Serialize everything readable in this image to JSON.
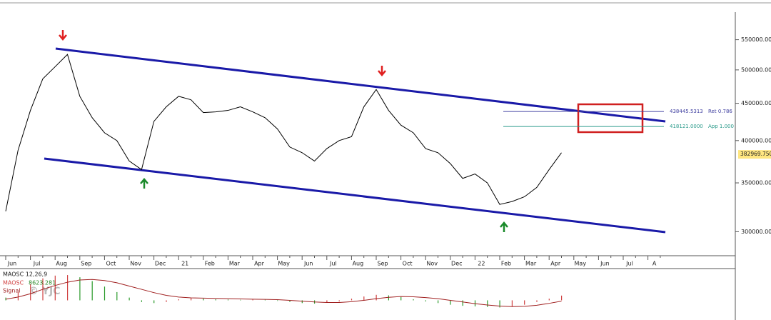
{
  "chart_data": [
    {
      "type": "line",
      "color": "#000000",
      "log_scale": true,
      "categories": [
        "Jun",
        null,
        "Jul",
        null,
        "Aug",
        null,
        "Sep",
        null,
        "Oct",
        null,
        "Nov",
        null,
        "Dec",
        null,
        "21",
        null,
        "Feb",
        null,
        "Mar",
        null,
        "Apr",
        null,
        "May",
        null,
        "Jun",
        null,
        "Jul",
        null,
        "Aug",
        null,
        "Sep",
        null,
        "Oct",
        null,
        "Nov",
        null,
        "Dec",
        null,
        "22",
        null,
        "Feb",
        null,
        "Mar",
        null,
        "Apr",
        null,
        "May",
        null,
        "Jun",
        null,
        "Jul",
        null,
        "A",
        null
      ],
      "values": [
        320000,
        388000,
        440000,
        486000,
        505000,
        525000,
        460000,
        430000,
        410000,
        400000,
        375000,
        365000,
        425000,
        445000,
        460000,
        455000,
        437000,
        438000,
        440000,
        445000,
        438000,
        430000,
        415000,
        392000,
        385000,
        375000,
        390000,
        400000,
        405000,
        445000,
        470000,
        440000,
        420000,
        410000,
        390000,
        385000,
        372000,
        355000,
        360000,
        350000,
        327000,
        330000,
        335000,
        345000,
        365000,
        385000,
        null,
        null,
        null,
        null,
        null,
        null,
        null,
        null
      ],
      "ylim": [
        280000,
        600000
      ],
      "yticks": [
        {
          "value": 300000,
          "label": "300000.00"
        },
        {
          "value": 350000,
          "label": "350000.00"
        },
        {
          "value": 400000,
          "label": "400000.00"
        },
        {
          "value": 450000,
          "label": "450000.00"
        },
        {
          "value": 500000,
          "label": "500000.00"
        },
        {
          "value": 550000,
          "label": "550000.00"
        }
      ],
      "levels": [
        {
          "value": 438445.5313,
          "label": "438445.5313",
          "text": "Ret 0.786",
          "color": "#4040a0"
        },
        {
          "value": 418121,
          "label": "418121.0000",
          "text": "App 1.000",
          "color": "#2a9a8a"
        }
      ],
      "last_price": {
        "value": 382969.75,
        "label": "382969.750"
      }
    },
    {
      "type": "bar",
      "title": "MAOSC 12,26,9",
      "ylim": [
        -15000,
        50000
      ],
      "series": [
        {
          "name": "MAOSC",
          "color": "#d04040",
          "values": [
            5000,
            15000,
            30000,
            40000,
            45000,
            46000,
            42000,
            35000,
            25000,
            15000,
            5000,
            -3000,
            -5000,
            -3000,
            2000,
            4000,
            3000,
            2000,
            1500,
            1000,
            1500,
            1000,
            -1000,
            -3000,
            -5000,
            -6000,
            -4000,
            -2000,
            3000,
            7000,
            10000,
            9000,
            6000,
            2000,
            -2000,
            -5000,
            -8000,
            -10000,
            -11000,
            -12000,
            -13000,
            -11000,
            -8000,
            -3000,
            3000,
            8623.281
          ]
        },
        {
          "name": "Signal",
          "color": "#a02020",
          "values": [
            2000,
            6000,
            12000,
            20000,
            27000,
            33000,
            37000,
            38000,
            36000,
            32000,
            26000,
            20000,
            14000,
            9000,
            6000,
            4500,
            4000,
            3500,
            3000,
            2500,
            2000,
            1800,
            1200,
            0,
            -1500,
            -3000,
            -4000,
            -4000,
            -2500,
            0,
            3000,
            5500,
            7000,
            6500,
            5000,
            3000,
            0,
            -3000,
            -6000,
            -8500,
            -10500,
            -11500,
            -11000,
            -9000,
            -5500,
            -1500
          ]
        }
      ]
    }
  ]
}
